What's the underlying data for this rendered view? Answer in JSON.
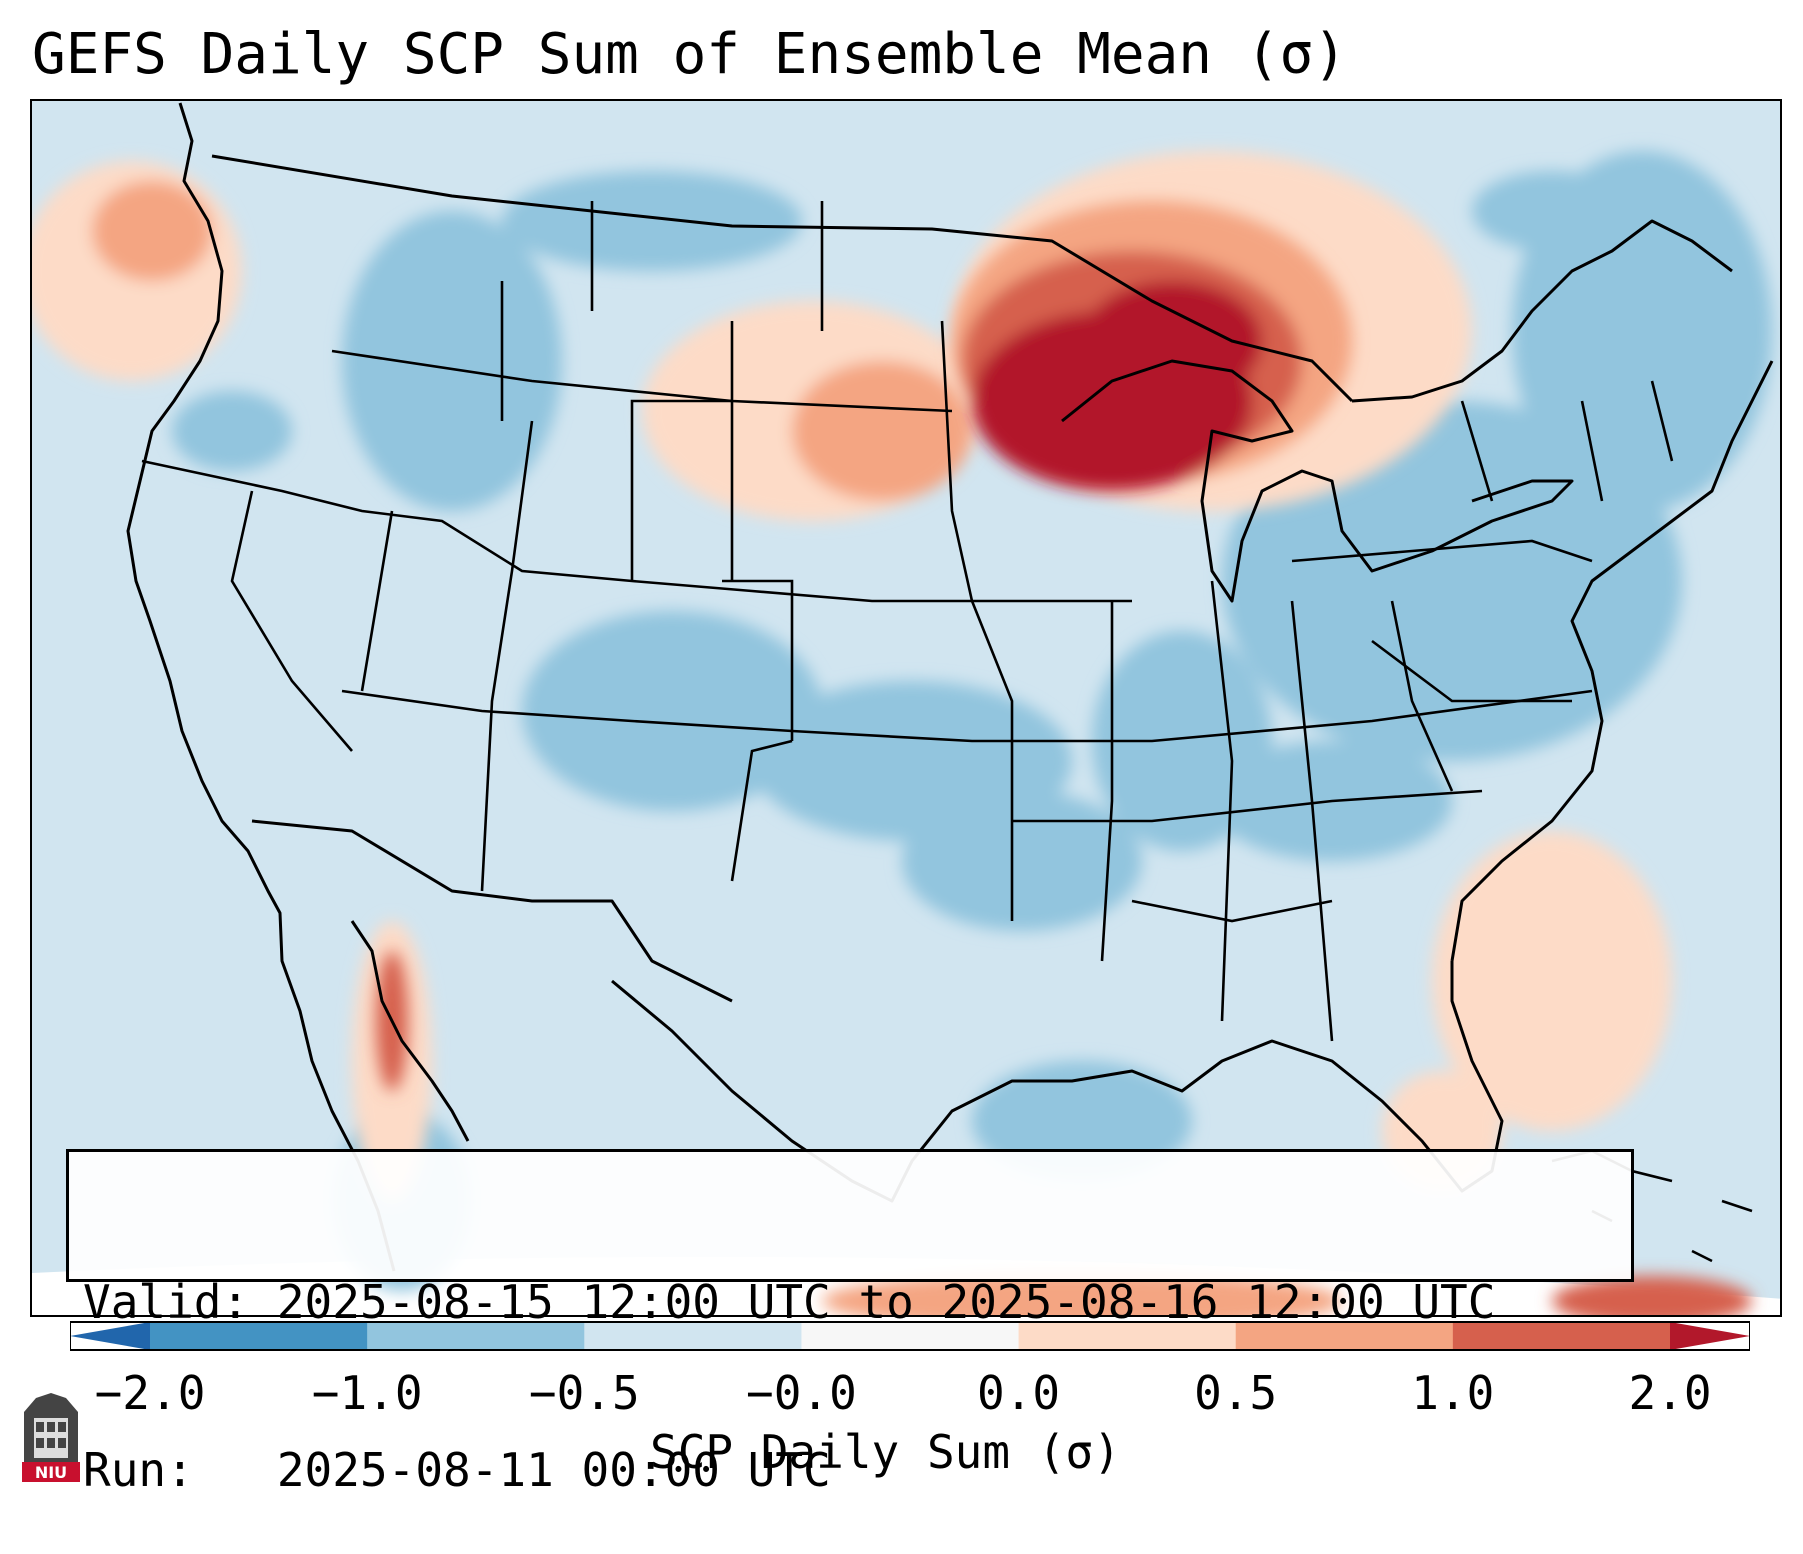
{
  "title": "GEFS Daily SCP Sum of Ensemble Mean (σ)",
  "map": {
    "region": "Continental United States",
    "anomaly_regions": [
      {
        "area": "Upper Midwest / Great Lakes",
        "value": 2.0
      },
      {
        "area": "Northern Plains",
        "value": 0.75
      },
      {
        "area": "Pacific Northwest coast",
        "value": 0.75
      },
      {
        "area": "Southeast Atlantic coast",
        "value": 0.25
      },
      {
        "area": "Gulf of California",
        "value": 1.0
      },
      {
        "area": "Interior West / Southern Plains",
        "value": -0.75
      },
      {
        "area": "Northeast",
        "value": -0.75
      }
    ]
  },
  "info": {
    "valid_line": "Valid: 2025-08-15 12:00 UTC to 2025-08-16 12:00 UTC",
    "run_line": "Run:   2025-08-11 00:00 UTC"
  },
  "colorbar": {
    "label": "SCP Daily Sum (σ)",
    "bounds": [
      -2.0,
      -1.0,
      -0.5,
      -0.0,
      0.0,
      0.5,
      1.0,
      2.0
    ],
    "tick_labels": [
      "−2.0",
      "−1.0",
      "−0.5",
      "−0.0",
      "0.0",
      "0.5",
      "1.0",
      "2.0"
    ],
    "colors": [
      "#4393c3",
      "#92c5de",
      "#d1e5f0",
      "#f7f7f7",
      "#fddbc7",
      "#f4a582",
      "#d6604d"
    ],
    "under_color": "#2166ac",
    "over_color": "#b2182b"
  },
  "logo": {
    "text": "NIU"
  }
}
